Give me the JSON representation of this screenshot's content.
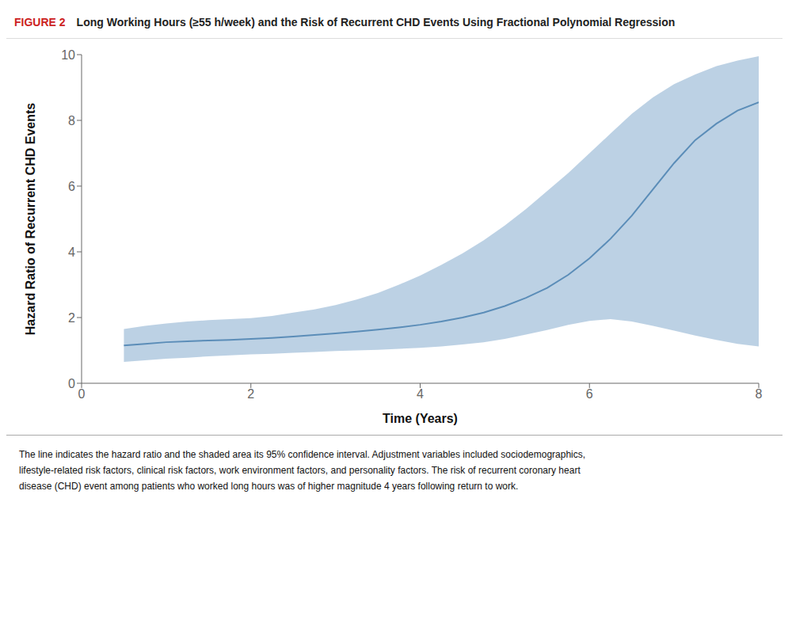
{
  "chart_data": {
    "type": "line",
    "title": "Long Working Hours (≥55 h/week) and the Risk of Recurrent CHD Events Using Fractional Polynomial Regression",
    "annotations": [
      {
        "text": "FIGURE 2",
        "color": "#cc2222"
      },
      {
        "text": "The line indicates the hazard ratio and the shaded area its 95% confidence interval. Adjustment variables included sociodemographics,"
      },
      {
        "text": "lifestyle-related risk factors, clinical risk factors, work environment factors, and personality factors. The risk of recurrent coronary heart"
      },
      {
        "text": "disease (CHD) event among patients who worked long hours was of higher magnitude 4 years following return to work."
      }
    ],
    "xlabel": "Time (Years)",
    "ylabel": "Hazard Ratio of Recurrent CHD Events",
    "x": [
      0.5,
      0.75,
      1.0,
      1.25,
      1.5,
      1.75,
      2.0,
      2.25,
      2.5,
      2.75,
      3.0,
      3.25,
      3.5,
      3.75,
      4.0,
      4.25,
      4.5,
      4.75,
      5.0,
      5.25,
      5.5,
      5.75,
      6.0,
      6.25,
      6.5,
      6.75,
      7.0,
      7.25,
      7.5,
      7.75,
      8.0
    ],
    "series": [
      {
        "type": "band",
        "color": "#a0bed8",
        "lower": [
          0.65,
          0.7,
          0.75,
          0.78,
          0.82,
          0.85,
          0.88,
          0.9,
          0.93,
          0.95,
          0.98,
          1.0,
          1.02,
          1.05,
          1.08,
          1.12,
          1.18,
          1.25,
          1.35,
          1.48,
          1.62,
          1.78,
          1.9,
          1.95,
          1.88,
          1.75,
          1.6,
          1.45,
          1.32,
          1.2,
          1.12
        ],
        "upper": [
          1.65,
          1.75,
          1.82,
          1.88,
          1.92,
          1.95,
          1.98,
          2.05,
          2.15,
          2.25,
          2.38,
          2.55,
          2.75,
          3.0,
          3.28,
          3.6,
          3.95,
          4.35,
          4.8,
          5.3,
          5.85,
          6.4,
          7.0,
          7.6,
          8.2,
          8.7,
          9.1,
          9.4,
          9.65,
          9.82,
          9.95
        ]
      },
      {
        "type": "line",
        "color": "#5b8db8",
        "values": [
          1.15,
          1.2,
          1.25,
          1.28,
          1.3,
          1.32,
          1.35,
          1.38,
          1.42,
          1.47,
          1.52,
          1.57,
          1.63,
          1.7,
          1.78,
          1.88,
          2.0,
          2.15,
          2.35,
          2.6,
          2.9,
          3.3,
          3.8,
          4.4,
          5.1,
          5.9,
          6.7,
          7.4,
          7.9,
          8.3,
          8.55
        ]
      }
    ],
    "xlim": [
      0,
      8
    ],
    "ylim": [
      0,
      10
    ],
    "xticks": [
      0,
      2,
      4,
      6,
      8
    ],
    "yticks": [
      0,
      2,
      4,
      6,
      8,
      10
    ],
    "grid": false
  }
}
